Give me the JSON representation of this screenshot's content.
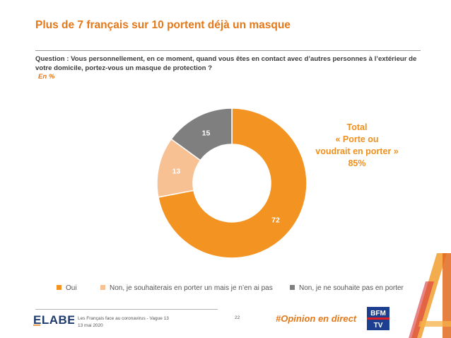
{
  "title": "Plus de 7 français sur 10 portent déjà un masque",
  "question": "Question : Vous personnellement, en ce moment, quand vous êtes en contact avec d’autres personnes à l’extérieur de votre domicile, portez-vous un masque de protection ?",
  "unit": "En %",
  "total": {
    "line1": "Total",
    "line2": "« Porte ou",
    "line3": "voudrait en porter »",
    "line4": "85%"
  },
  "chart_data": {
    "type": "pie",
    "donut": true,
    "categories": [
      "Oui",
      "Non, je souhaiterais en porter un mais je n’en ai pas",
      "Non, je ne souhaite pas en porter"
    ],
    "values": [
      72,
      13,
      15
    ],
    "colors": [
      "#f39322",
      "#f8c194",
      "#7f7f7f"
    ],
    "legend_position": "bottom"
  },
  "footer": {
    "brand": "ELABE",
    "survey": "Les Français face au coronavirus - Vague 13",
    "date": "13 mai 2020",
    "page": "22",
    "hashtag": "#Opinion en direct",
    "partner_logo": "BFM TV"
  },
  "colors": {
    "accent": "#e3791b",
    "brand_navy": "#1f3b6e",
    "bfm_blue": "#1d3f8f"
  }
}
